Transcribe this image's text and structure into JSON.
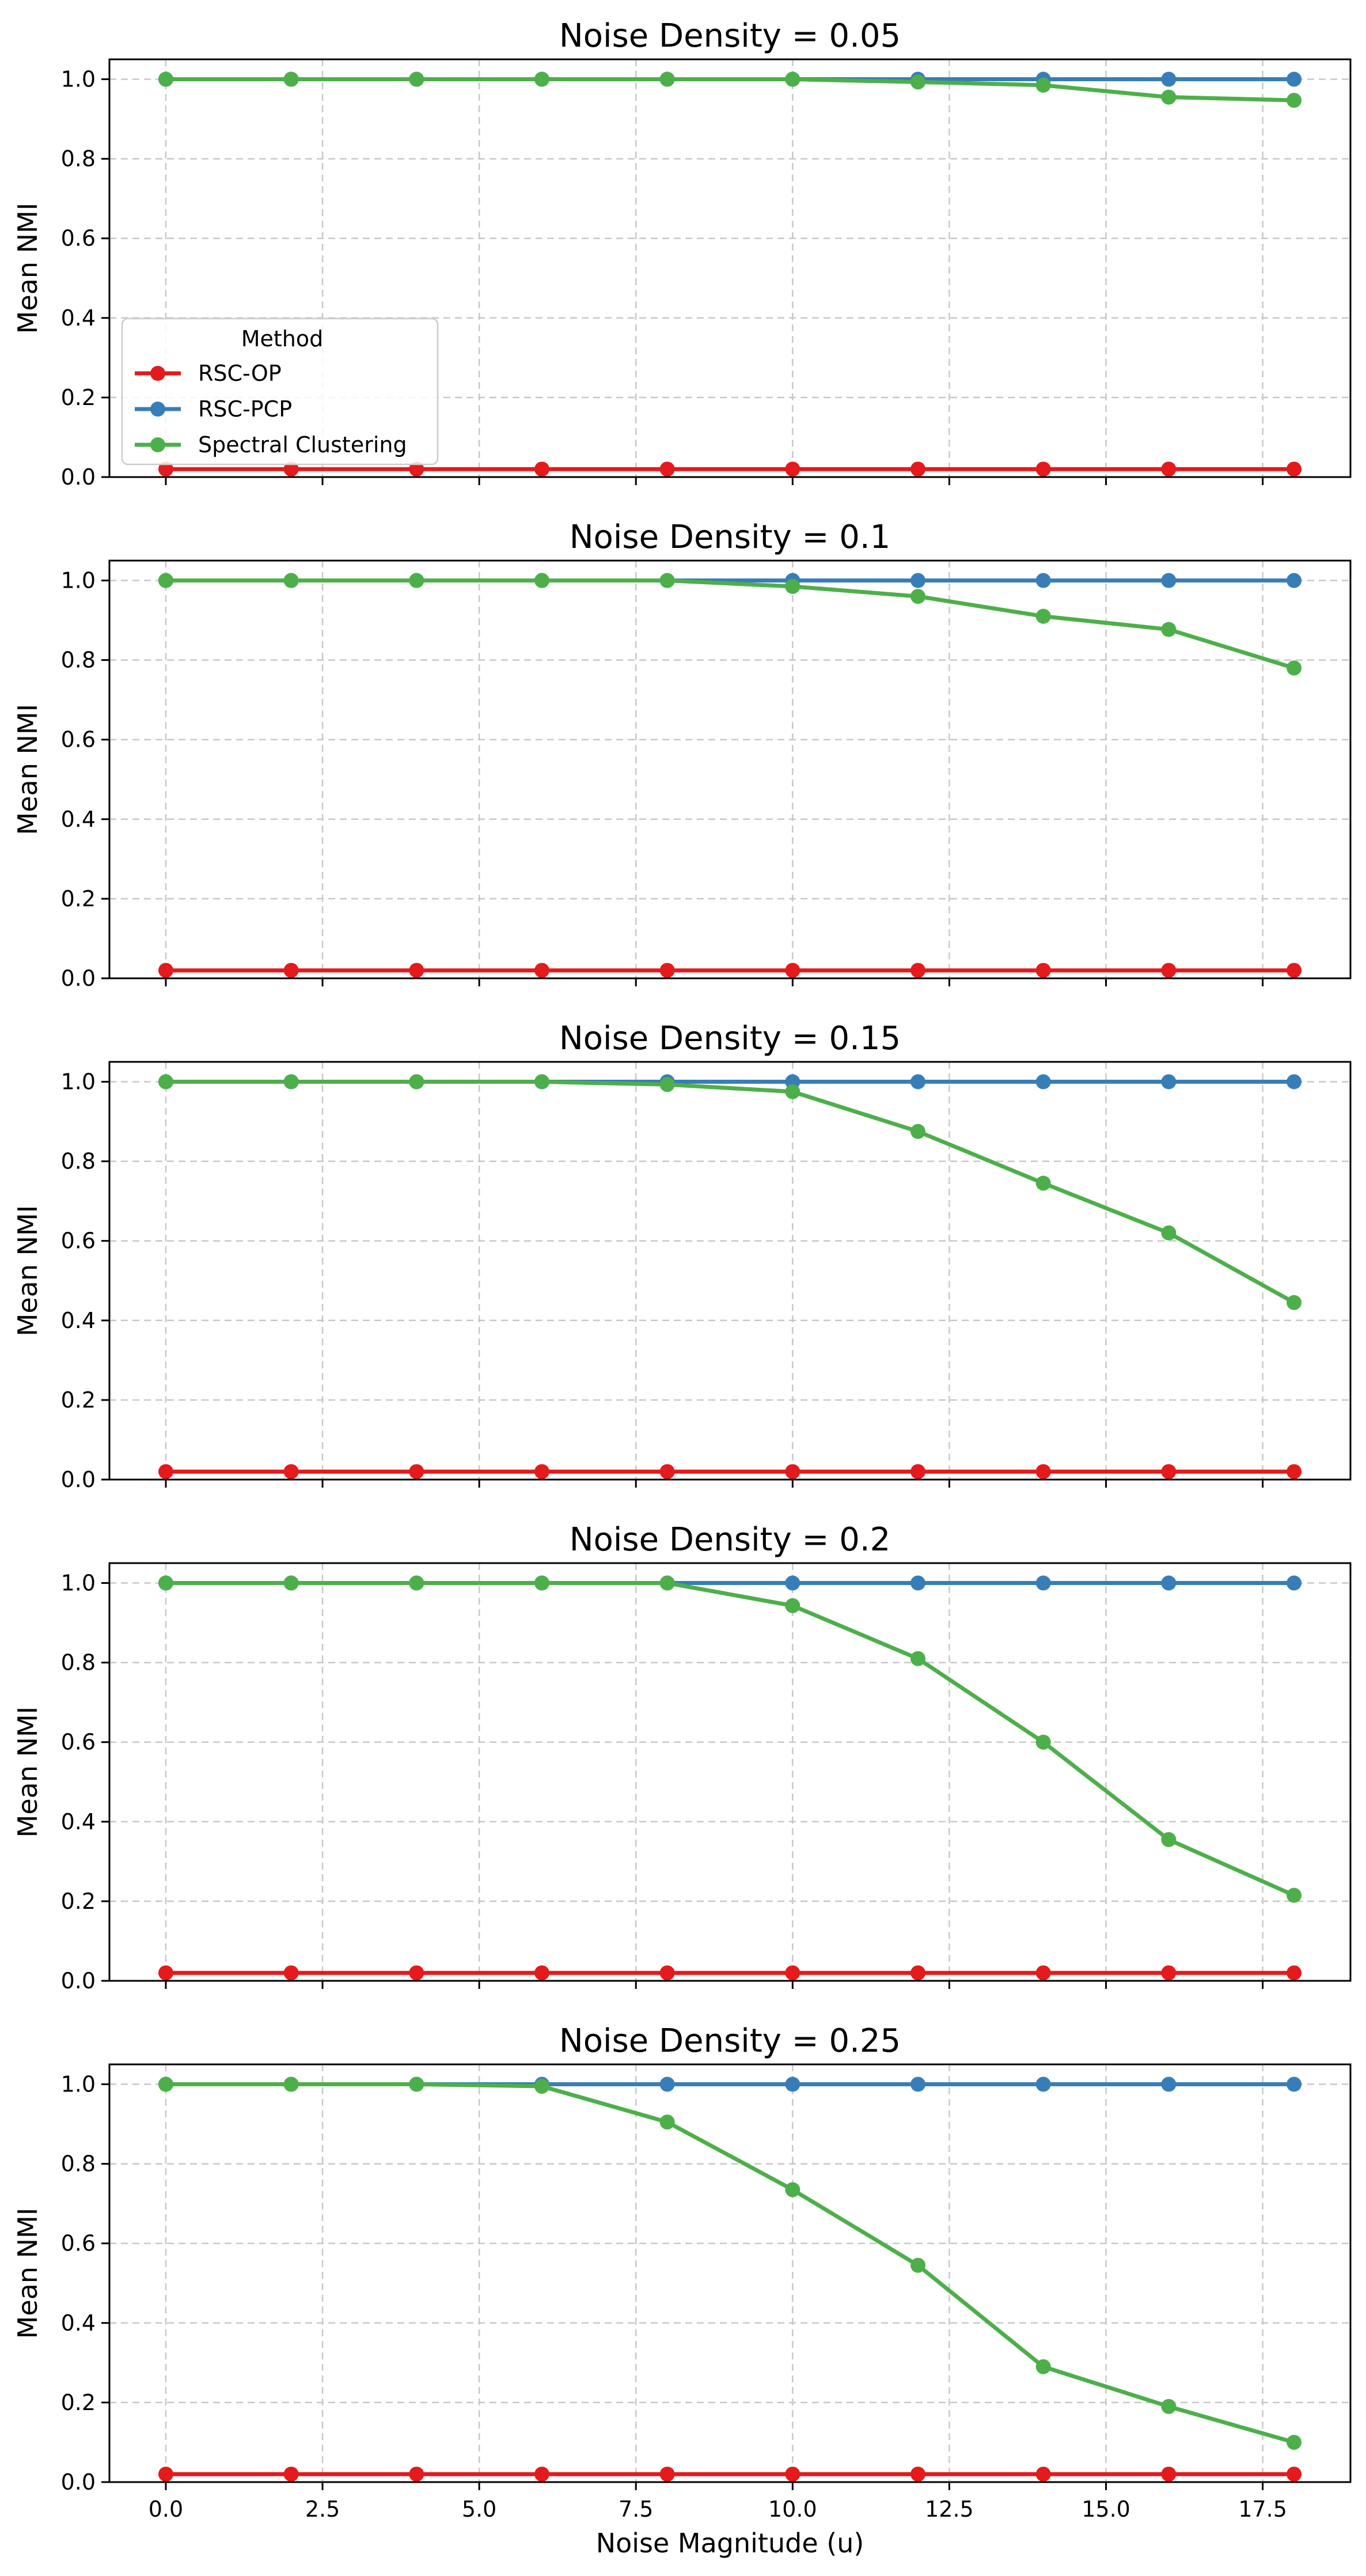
{
  "chart_data": {
    "type": "line",
    "shared_x": true,
    "xlabel": "Noise Magnitude (u)",
    "ylabel": "Mean NMI",
    "x": [
      0,
      2,
      4,
      6,
      8,
      10,
      12,
      14,
      16,
      18
    ],
    "xlim": [
      -0.9,
      18.9
    ],
    "ylim": [
      0,
      1.05
    ],
    "xticks": [
      "0.0",
      "2.5",
      "5.0",
      "7.5",
      "10.0",
      "12.5",
      "15.0",
      "17.5"
    ],
    "yticks": [
      "0.0",
      "0.2",
      "0.4",
      "0.6",
      "0.8",
      "1.0"
    ],
    "grid": true,
    "legend": {
      "title": "Method",
      "placement": "lower-left of first panel",
      "entries": [
        "RSC-OP",
        "RSC-PCP",
        "Spectral Clustering"
      ]
    },
    "colors": {
      "RSC-OP": "#e41a1c",
      "RSC-PCP": "#377eb8",
      "Spectral Clustering": "#4daf4a"
    },
    "panels": [
      {
        "title": "Noise Density = 0.05",
        "series": [
          {
            "name": "RSC-OP",
            "values": [
              0.02,
              0.02,
              0.02,
              0.02,
              0.02,
              0.02,
              0.02,
              0.02,
              0.02,
              0.02
            ]
          },
          {
            "name": "RSC-PCP",
            "values": [
              1.0,
              1.0,
              1.0,
              1.0,
              1.0,
              1.0,
              1.0,
              1.0,
              1.0,
              1.0
            ]
          },
          {
            "name": "Spectral Clustering",
            "values": [
              1.0,
              1.0,
              1.0,
              1.0,
              1.0,
              1.0,
              0.993,
              0.985,
              0.955,
              0.947
            ]
          }
        ]
      },
      {
        "title": "Noise Density = 0.1",
        "series": [
          {
            "name": "RSC-OP",
            "values": [
              0.02,
              0.02,
              0.02,
              0.02,
              0.02,
              0.02,
              0.02,
              0.02,
              0.02,
              0.02
            ]
          },
          {
            "name": "RSC-PCP",
            "values": [
              1.0,
              1.0,
              1.0,
              1.0,
              1.0,
              1.0,
              1.0,
              1.0,
              1.0,
              1.0
            ]
          },
          {
            "name": "Spectral Clustering",
            "values": [
              1.0,
              1.0,
              1.0,
              1.0,
              1.0,
              0.985,
              0.96,
              0.91,
              0.877,
              0.78
            ]
          }
        ]
      },
      {
        "title": "Noise Density = 0.15",
        "series": [
          {
            "name": "RSC-OP",
            "values": [
              0.02,
              0.02,
              0.02,
              0.02,
              0.02,
              0.02,
              0.02,
              0.02,
              0.02,
              0.02
            ]
          },
          {
            "name": "RSC-PCP",
            "values": [
              1.0,
              1.0,
              1.0,
              1.0,
              1.0,
              1.0,
              1.0,
              1.0,
              1.0,
              1.0
            ]
          },
          {
            "name": "Spectral Clustering",
            "values": [
              1.0,
              1.0,
              1.0,
              1.0,
              0.993,
              0.975,
              0.875,
              0.745,
              0.62,
              0.445
            ]
          }
        ]
      },
      {
        "title": "Noise Density = 0.2",
        "series": [
          {
            "name": "RSC-OP",
            "values": [
              0.02,
              0.02,
              0.02,
              0.02,
              0.02,
              0.02,
              0.02,
              0.02,
              0.02,
              0.02
            ]
          },
          {
            "name": "RSC-PCP",
            "values": [
              1.0,
              1.0,
              1.0,
              1.0,
              1.0,
              1.0,
              1.0,
              1.0,
              1.0,
              1.0
            ]
          },
          {
            "name": "Spectral Clustering",
            "values": [
              1.0,
              1.0,
              1.0,
              1.0,
              1.0,
              0.943,
              0.81,
              0.6,
              0.355,
              0.215
            ]
          }
        ]
      },
      {
        "title": "Noise Density = 0.25",
        "series": [
          {
            "name": "RSC-OP",
            "values": [
              0.02,
              0.02,
              0.02,
              0.02,
              0.02,
              0.02,
              0.02,
              0.02,
              0.02,
              0.02
            ]
          },
          {
            "name": "RSC-PCP",
            "values": [
              1.0,
              1.0,
              1.0,
              1.0,
              1.0,
              1.0,
              1.0,
              1.0,
              1.0,
              1.0
            ]
          },
          {
            "name": "Spectral Clustering",
            "values": [
              1.0,
              1.0,
              1.0,
              0.995,
              0.905,
              0.735,
              0.545,
              0.29,
              0.19,
              0.1
            ]
          }
        ]
      }
    ]
  }
}
